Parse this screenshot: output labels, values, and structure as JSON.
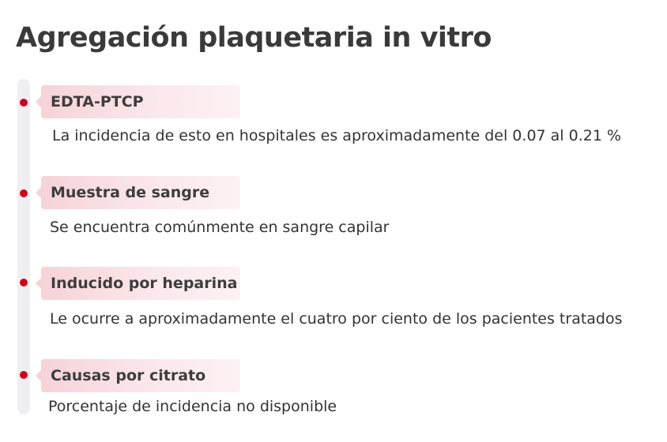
{
  "title": "Agregación plaquetaria in vitro",
  "accent": "#d0021b",
  "items": [
    {
      "label": "EDTA-PTCP",
      "text": "La incidencia de esto en hospitales es aproximadamente del 0.07 al 0.21 %"
    },
    {
      "label": "Muestra de sangre",
      "text": "Se encuentra comúnmente en sangre capilar"
    },
    {
      "label": "Inducido por heparina",
      "text": "Le ocurre a aproximadamente el cuatro por ciento de los pacientes tratados"
    },
    {
      "label": "Causas por citrato",
      "text": "Porcentaje de incidencia no disponible"
    }
  ]
}
